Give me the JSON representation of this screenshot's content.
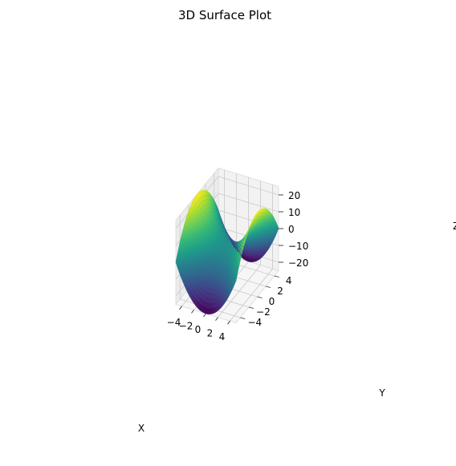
{
  "chart_data": {
    "type": "surface3d",
    "title": "3D Surface Plot",
    "function": "z = x^2 - y^2",
    "xlabel": "X",
    "ylabel": "Y",
    "zlabel": "Z",
    "x_ticks": [
      "−4",
      "−2",
      "0",
      "2",
      "4"
    ],
    "x_tick_values": [
      -4,
      -2,
      0,
      2,
      4
    ],
    "y_ticks": [
      "−4",
      "−2",
      "0",
      "2",
      "4"
    ],
    "y_tick_values": [
      -4,
      -2,
      0,
      2,
      4
    ],
    "z_ticks": [
      "−20",
      "−10",
      "0",
      "10",
      "20"
    ],
    "z_tick_values": [
      -20,
      -10,
      0,
      10,
      20
    ],
    "xlim": [
      -5,
      5
    ],
    "ylim": [
      -5,
      5
    ],
    "zlim": [
      -25,
      25
    ],
    "grid": true,
    "colormap": "viridis",
    "colormap_stops": [
      "#440154",
      "#482878",
      "#3e4989",
      "#31688e",
      "#26828e",
      "#1f9e89",
      "#35b779",
      "#6ece58",
      "#b5de2b",
      "#fde725"
    ]
  }
}
